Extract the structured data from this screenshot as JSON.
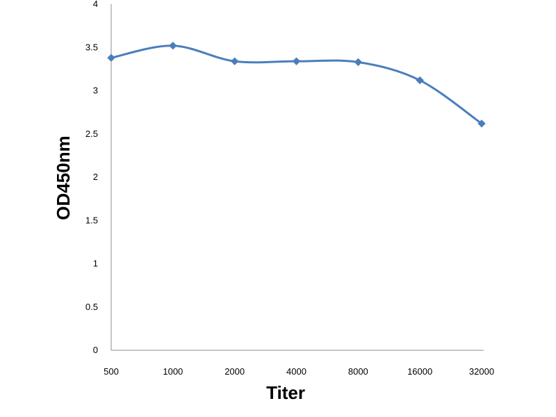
{
  "chart_data": {
    "type": "line",
    "title": "",
    "xlabel": "Titer",
    "ylabel": "OD450nm",
    "categories": [
      "500",
      "1000",
      "2000",
      "4000",
      "8000",
      "16000",
      "32000"
    ],
    "y_ticks": [
      "0",
      "0.5",
      "1",
      "1.5",
      "2",
      "2.5",
      "3",
      "3.5",
      "4"
    ],
    "ylim": [
      0,
      4
    ],
    "grid": false,
    "legend": "none",
    "series": [
      {
        "values": [
          3.38,
          3.52,
          3.34,
          3.34,
          3.33,
          3.12,
          2.62
        ],
        "color": "#4a7ebb",
        "marker": "diamond",
        "smooth": true
      }
    ]
  }
}
